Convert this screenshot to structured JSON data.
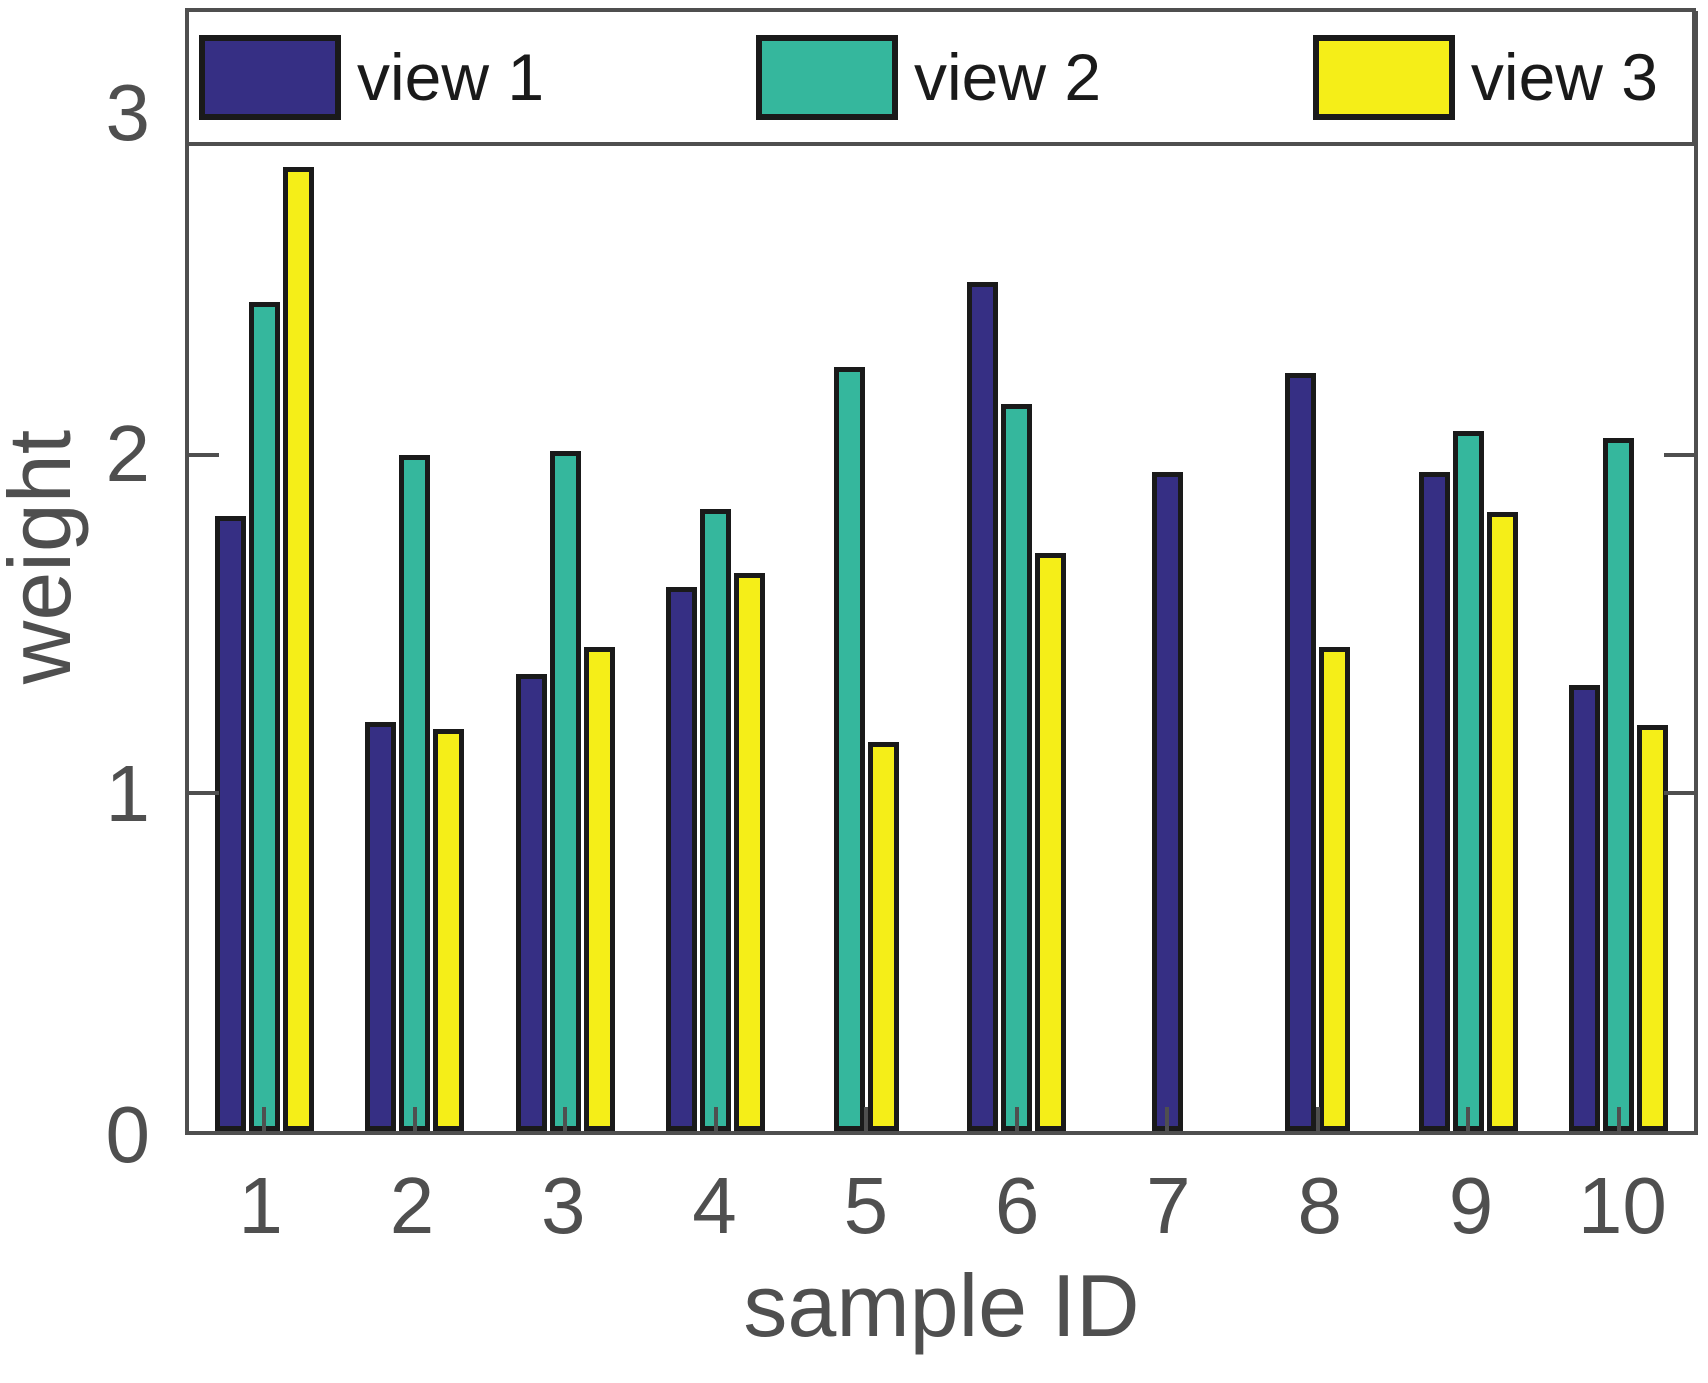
{
  "chart_data": {
    "type": "bar",
    "title": "",
    "xlabel": "sample ID",
    "ylabel": "weight",
    "categories": [
      "1",
      "2",
      "3",
      "4",
      "5",
      "6",
      "7",
      "8",
      "9",
      "10"
    ],
    "series": [
      {
        "name": "view 1",
        "color": "#362F84",
        "values": [
          1.82,
          1.21,
          1.35,
          1.61,
          0,
          2.51,
          1.95,
          2.24,
          1.95,
          1.32
        ]
      },
      {
        "name": "view 2",
        "color": "#35B79D",
        "values": [
          2.45,
          2.0,
          2.01,
          1.84,
          2.26,
          2.15,
          0,
          0,
          2.07,
          2.05
        ]
      },
      {
        "name": "view 3",
        "color": "#F5EE18",
        "values": [
          2.85,
          1.19,
          1.43,
          1.65,
          1.15,
          1.71,
          0,
          1.43,
          1.83,
          1.2
        ]
      }
    ],
    "ylim": [
      0,
      3.3
    ],
    "yticks": [
      0,
      1,
      2,
      3
    ],
    "legend_position": "top",
    "grid": false,
    "axis_color": "#4F4F4F",
    "bar_edge_color": "#1A1A1A",
    "background": "#ffffff"
  }
}
